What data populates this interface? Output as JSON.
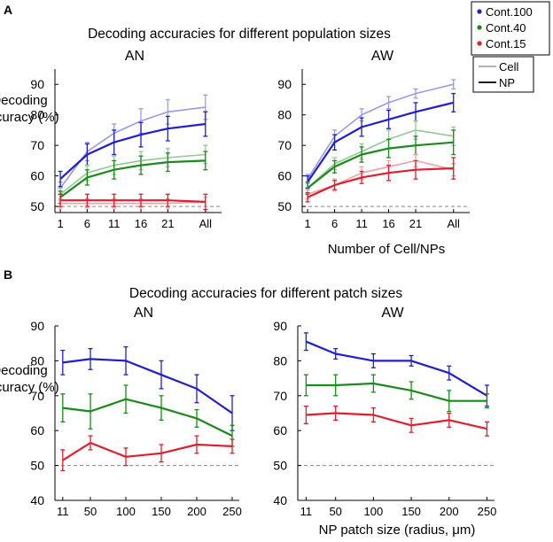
{
  "figure": {
    "panel_a_letter": "A",
    "panel_b_letter": "B",
    "title_a": "Decoding accuracies for different population sizes",
    "title_b": "Decoding accuracies for different patch sizes",
    "ylabel_line1": "Decoding",
    "ylabel_line2": "Accuracy (%)",
    "xlabel_a": "Number of Cell/NPs",
    "xlabel_b": "NP patch size (radius, μm)"
  },
  "legend_conditions": [
    {
      "label": "Cont.100",
      "color": "#1f1fd0"
    },
    {
      "label": "Cont.40",
      "color": "#1a8a1a"
    },
    {
      "label": "Cont.15",
      "color": "#e01e2e"
    }
  ],
  "legend_types": [
    {
      "label": "Cell",
      "style": "light"
    },
    {
      "label": "NP",
      "style": "dark"
    }
  ],
  "colors": {
    "blue_dark": "#1f1fd0",
    "blue_light": "#9a9ae8",
    "green_dark": "#1a8a1a",
    "green_light": "#92c992",
    "red_dark": "#e01e2e",
    "red_light": "#f0a0a8",
    "chance_line": "#888888",
    "axis": "#000000"
  },
  "chart_data": [
    {
      "id": "A-AN",
      "type": "line",
      "title": "AN",
      "x_positions": [
        1,
        6,
        11,
        16,
        21,
        28
      ],
      "x_tick_labels": [
        "1",
        "6",
        "11",
        "16",
        "21",
        "All"
      ],
      "xlim": [
        0,
        31
      ],
      "ylim": [
        48,
        95
      ],
      "yticks": [
        50,
        60,
        70,
        80,
        90
      ],
      "chance": 50,
      "series": [
        {
          "name": "Cont.100 Cell",
          "color": "blue_light",
          "width": 1.6,
          "values": [
            56,
            68,
            74,
            78,
            81,
            82.5
          ],
          "err": [
            2,
            3,
            3,
            4,
            4,
            4
          ]
        },
        {
          "name": "Cont.100 NP",
          "color": "blue_dark",
          "width": 2.2,
          "values": [
            59,
            67,
            71,
            73.5,
            75.5,
            77
          ],
          "err": [
            2.5,
            3.5,
            4,
            4,
            4,
            4
          ]
        },
        {
          "name": "Cont.40 Cell",
          "color": "green_light",
          "width": 1.6,
          "values": [
            54,
            61,
            63.5,
            65,
            66,
            67
          ],
          "err": [
            2,
            2.5,
            3,
            3,
            3,
            3
          ]
        },
        {
          "name": "Cont.40 NP",
          "color": "green_dark",
          "width": 2.2,
          "values": [
            53,
            59.5,
            62,
            63.5,
            64.5,
            65
          ],
          "err": [
            2,
            2.5,
            3,
            3,
            3,
            3
          ]
        },
        {
          "name": "Cont.15 Cell",
          "color": "red_light",
          "width": 1.6,
          "values": [
            51,
            51,
            51,
            51,
            51,
            51.5
          ],
          "err": [
            1.5,
            1.5,
            1.5,
            1.5,
            1.5,
            1.5
          ]
        },
        {
          "name": "Cont.15 NP",
          "color": "red_dark",
          "width": 2.2,
          "values": [
            52,
            52,
            52,
            52,
            52,
            51.5
          ],
          "err": [
            2,
            2,
            2,
            2,
            2,
            2.5
          ]
        }
      ]
    },
    {
      "id": "A-AW",
      "type": "line",
      "title": "AW",
      "x_positions": [
        1,
        6,
        11,
        16,
        21,
        28
      ],
      "x_tick_labels": [
        "1",
        "6",
        "11",
        "16",
        "21",
        "All"
      ],
      "xlim": [
        0,
        31
      ],
      "ylim": [
        48,
        95
      ],
      "yticks": [
        50,
        60,
        70,
        80,
        90
      ],
      "chance": 50,
      "series": [
        {
          "name": "Cont.100 Cell",
          "color": "blue_light",
          "width": 1.6,
          "values": [
            59,
            73,
            80,
            84,
            87,
            90
          ],
          "err": [
            1.5,
            2,
            2,
            2,
            1.5,
            1.5
          ]
        },
        {
          "name": "Cont.100 NP",
          "color": "blue_dark",
          "width": 2.2,
          "values": [
            58,
            71,
            76,
            78.5,
            81,
            84
          ],
          "err": [
            2,
            2.5,
            3,
            3,
            3,
            3
          ]
        },
        {
          "name": "Cont.40 Cell",
          "color": "green_light",
          "width": 1.6,
          "values": [
            56,
            64,
            68,
            72,
            75,
            73
          ],
          "err": [
            2,
            2,
            2.5,
            3,
            3,
            3
          ]
        },
        {
          "name": "Cont.40 NP",
          "color": "green_dark",
          "width": 2.2,
          "values": [
            56,
            63,
            67,
            69,
            70,
            71
          ],
          "err": [
            2,
            2,
            2.5,
            3,
            3,
            4
          ]
        },
        {
          "name": "Cont.15 Cell",
          "color": "red_light",
          "width": 1.6,
          "values": [
            54,
            57,
            61,
            63,
            65,
            62
          ],
          "err": [
            1.5,
            2,
            2,
            2,
            2,
            2
          ]
        },
        {
          "name": "Cont.15 NP",
          "color": "red_dark",
          "width": 2.2,
          "values": [
            53,
            57,
            59.5,
            61,
            62,
            62.5
          ],
          "err": [
            1.5,
            1.5,
            2,
            2.5,
            3,
            3.5
          ]
        }
      ]
    },
    {
      "id": "B-AN",
      "type": "line",
      "title": "AN",
      "x_positions": [
        11,
        50,
        100,
        150,
        200,
        250
      ],
      "x_tick_labels": [
        "11",
        "50",
        "100",
        "150",
        "200",
        "250"
      ],
      "xlim": [
        0,
        260
      ],
      "ylim": [
        40,
        90
      ],
      "yticks": [
        40,
        50,
        60,
        70,
        80,
        90
      ],
      "chance": 50,
      "series": [
        {
          "name": "Cont.100 NP",
          "color": "blue_dark",
          "width": 2.2,
          "values": [
            79.5,
            80.5,
            80,
            76,
            72,
            65
          ],
          "err": [
            3.5,
            3,
            4,
            4,
            4,
            5
          ]
        },
        {
          "name": "Cont.40 NP",
          "color": "green_dark",
          "width": 2.2,
          "values": [
            66.5,
            65.5,
            69,
            66.5,
            63.5,
            58.5
          ],
          "err": [
            4,
            5,
            4,
            3.5,
            2.5,
            3
          ]
        },
        {
          "name": "Cont.15 NP",
          "color": "red_dark",
          "width": 2.2,
          "values": [
            51.5,
            56.5,
            52.5,
            53.5,
            56,
            55.5
          ],
          "err": [
            3,
            2,
            2.5,
            2.5,
            2.5,
            2
          ]
        }
      ]
    },
    {
      "id": "B-AW",
      "type": "line",
      "title": "AW",
      "x_positions": [
        11,
        50,
        100,
        150,
        200,
        250
      ],
      "x_tick_labels": [
        "11",
        "50",
        "100",
        "150",
        "200",
        "250"
      ],
      "xlim": [
        0,
        260
      ],
      "ylim": [
        40,
        90
      ],
      "yticks": [
        40,
        50,
        60,
        70,
        80,
        90
      ],
      "chance": 50,
      "series": [
        {
          "name": "Cont.100 NP",
          "color": "blue_dark",
          "width": 2.2,
          "values": [
            85.5,
            82,
            80,
            80,
            76.5,
            70
          ],
          "err": [
            2.5,
            1.5,
            2,
            1.5,
            2,
            3
          ]
        },
        {
          "name": "Cont.40 NP",
          "color": "green_dark",
          "width": 2.2,
          "values": [
            73,
            73,
            73.5,
            71.5,
            68.5,
            68.5
          ],
          "err": [
            3,
            3,
            2.5,
            2.5,
            3,
            2
          ]
        },
        {
          "name": "Cont.15 NP",
          "color": "red_dark",
          "width": 2.2,
          "values": [
            64.5,
            65,
            64.5,
            61.5,
            63,
            60.5
          ],
          "err": [
            2.5,
            2,
            2,
            2,
            2,
            2
          ]
        }
      ]
    }
  ]
}
